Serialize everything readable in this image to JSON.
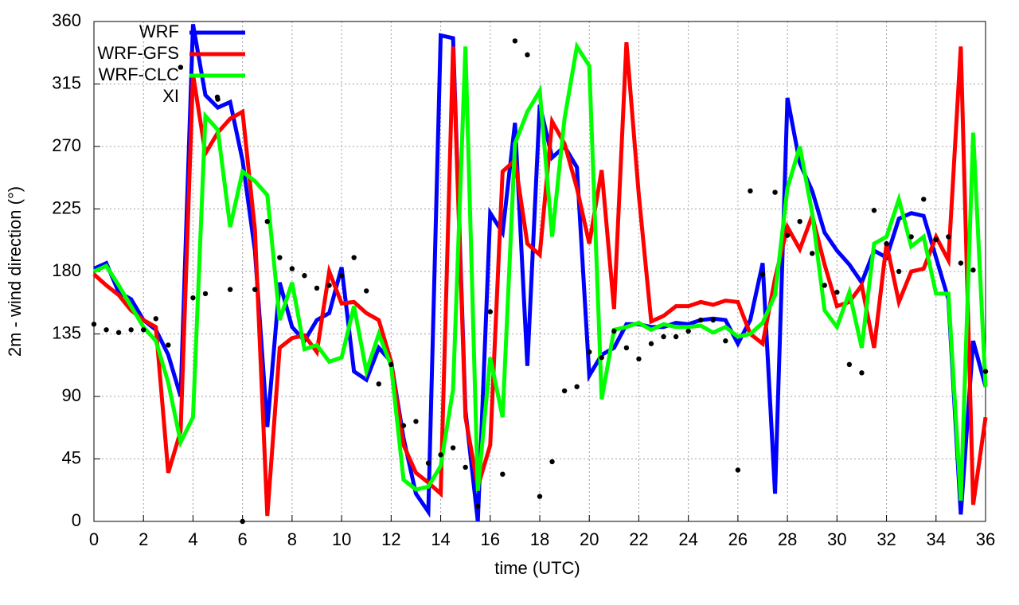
{
  "chart_data": {
    "type": "line",
    "xlabel": "time (UTC)",
    "ylabel": "2m - wind direction (°)",
    "x": [
      0,
      0.5,
      1,
      1.5,
      2,
      2.5,
      3,
      3.5,
      4,
      4.5,
      5,
      5.5,
      6,
      6.5,
      7,
      7.5,
      8,
      8.5,
      9,
      9.5,
      10,
      10.5,
      11,
      11.5,
      12,
      12.5,
      13,
      13.5,
      14,
      14.5,
      15,
      15.5,
      16,
      16.5,
      17,
      17.5,
      18,
      18.5,
      19,
      19.5,
      20,
      20.5,
      21,
      21.5,
      22,
      22.5,
      23,
      23.5,
      24,
      24.5,
      25,
      25.5,
      26,
      26.5,
      27,
      27.5,
      28,
      28.5,
      29,
      29.5,
      30,
      30.5,
      31,
      31.5,
      32,
      32.5,
      33,
      33.5,
      34,
      34.5,
      35,
      35.5,
      36
    ],
    "series": [
      {
        "name": "WRF",
        "color": "#0000ff",
        "style": "line",
        "values": [
          182,
          186,
          165,
          160,
          145,
          138,
          120,
          90,
          358,
          307,
          298,
          302,
          260,
          195,
          68,
          172,
          140,
          130,
          145,
          150,
          183,
          108,
          102,
          125,
          115,
          60,
          20,
          7,
          350,
          348,
          80,
          0,
          222,
          208,
          287,
          112,
          300,
          262,
          270,
          255,
          105,
          120,
          125,
          142,
          142,
          140,
          140,
          143,
          142,
          145,
          146,
          145,
          128,
          145,
          186,
          20,
          305,
          258,
          238,
          208,
          195,
          185,
          172,
          195,
          190,
          218,
          222,
          220,
          190,
          160,
          5,
          130,
          97
        ]
      },
      {
        "name": "WRF-GFS",
        "color": "#ff0000",
        "style": "line",
        "values": [
          178,
          170,
          163,
          152,
          145,
          140,
          35,
          65,
          322,
          265,
          280,
          290,
          295,
          210,
          4,
          125,
          132,
          134,
          122,
          180,
          157,
          158,
          150,
          145,
          115,
          55,
          35,
          28,
          20,
          342,
          75,
          25,
          55,
          252,
          260,
          200,
          192,
          288,
          272,
          240,
          200,
          253,
          153,
          345,
          235,
          144,
          148,
          155,
          155,
          158,
          156,
          159,
          158,
          135,
          128,
          175,
          212,
          196,
          220,
          185,
          155,
          158,
          170,
          125,
          200,
          158,
          180,
          182,
          205,
          188,
          342,
          12,
          75
        ]
      },
      {
        "name": "WRF-CLC",
        "color": "#00ff00",
        "style": "line",
        "values": [
          180,
          184,
          170,
          155,
          140,
          130,
          100,
          57,
          75,
          292,
          282,
          212,
          252,
          245,
          235,
          145,
          172,
          124,
          127,
          115,
          118,
          155,
          108,
          135,
          112,
          30,
          23,
          25,
          40,
          95,
          342,
          22,
          118,
          75,
          272,
          295,
          310,
          205,
          290,
          342,
          328,
          88,
          138,
          140,
          143,
          138,
          142,
          140,
          140,
          141,
          136,
          140,
          133,
          135,
          143,
          163,
          240,
          270,
          222,
          152,
          140,
          165,
          125,
          200,
          205,
          232,
          198,
          205,
          164,
          164,
          15,
          280,
          97
        ]
      },
      {
        "name": "XI",
        "color": "#000000",
        "style": "points",
        "values": [
          142,
          138,
          136,
          138,
          138,
          146,
          127,
          327,
          161,
          164,
          304,
          167,
          0,
          167,
          216,
          190,
          182,
          177,
          168,
          170,
          177,
          190,
          166,
          99,
          113,
          69,
          72,
          42,
          48,
          53,
          39,
          11,
          151,
          34,
          346,
          336,
          18,
          43,
          94,
          97,
          122,
          118,
          137,
          125,
          117,
          128,
          133,
          133,
          137,
          145,
          145,
          130,
          37,
          238,
          178,
          237,
          206,
          216,
          193,
          170,
          165,
          113,
          107,
          224,
          200,
          180,
          205,
          232,
          203,
          205,
          186,
          181,
          108
        ]
      }
    ],
    "xlim": [
      0,
      36
    ],
    "xticks": [
      0,
      2,
      4,
      6,
      8,
      10,
      12,
      14,
      16,
      18,
      20,
      22,
      24,
      26,
      28,
      30,
      32,
      34,
      36
    ],
    "ylim": [
      0,
      360
    ],
    "yticks": [
      0,
      45,
      90,
      135,
      180,
      225,
      270,
      315,
      360
    ],
    "grid": true,
    "legend": "top-left"
  }
}
